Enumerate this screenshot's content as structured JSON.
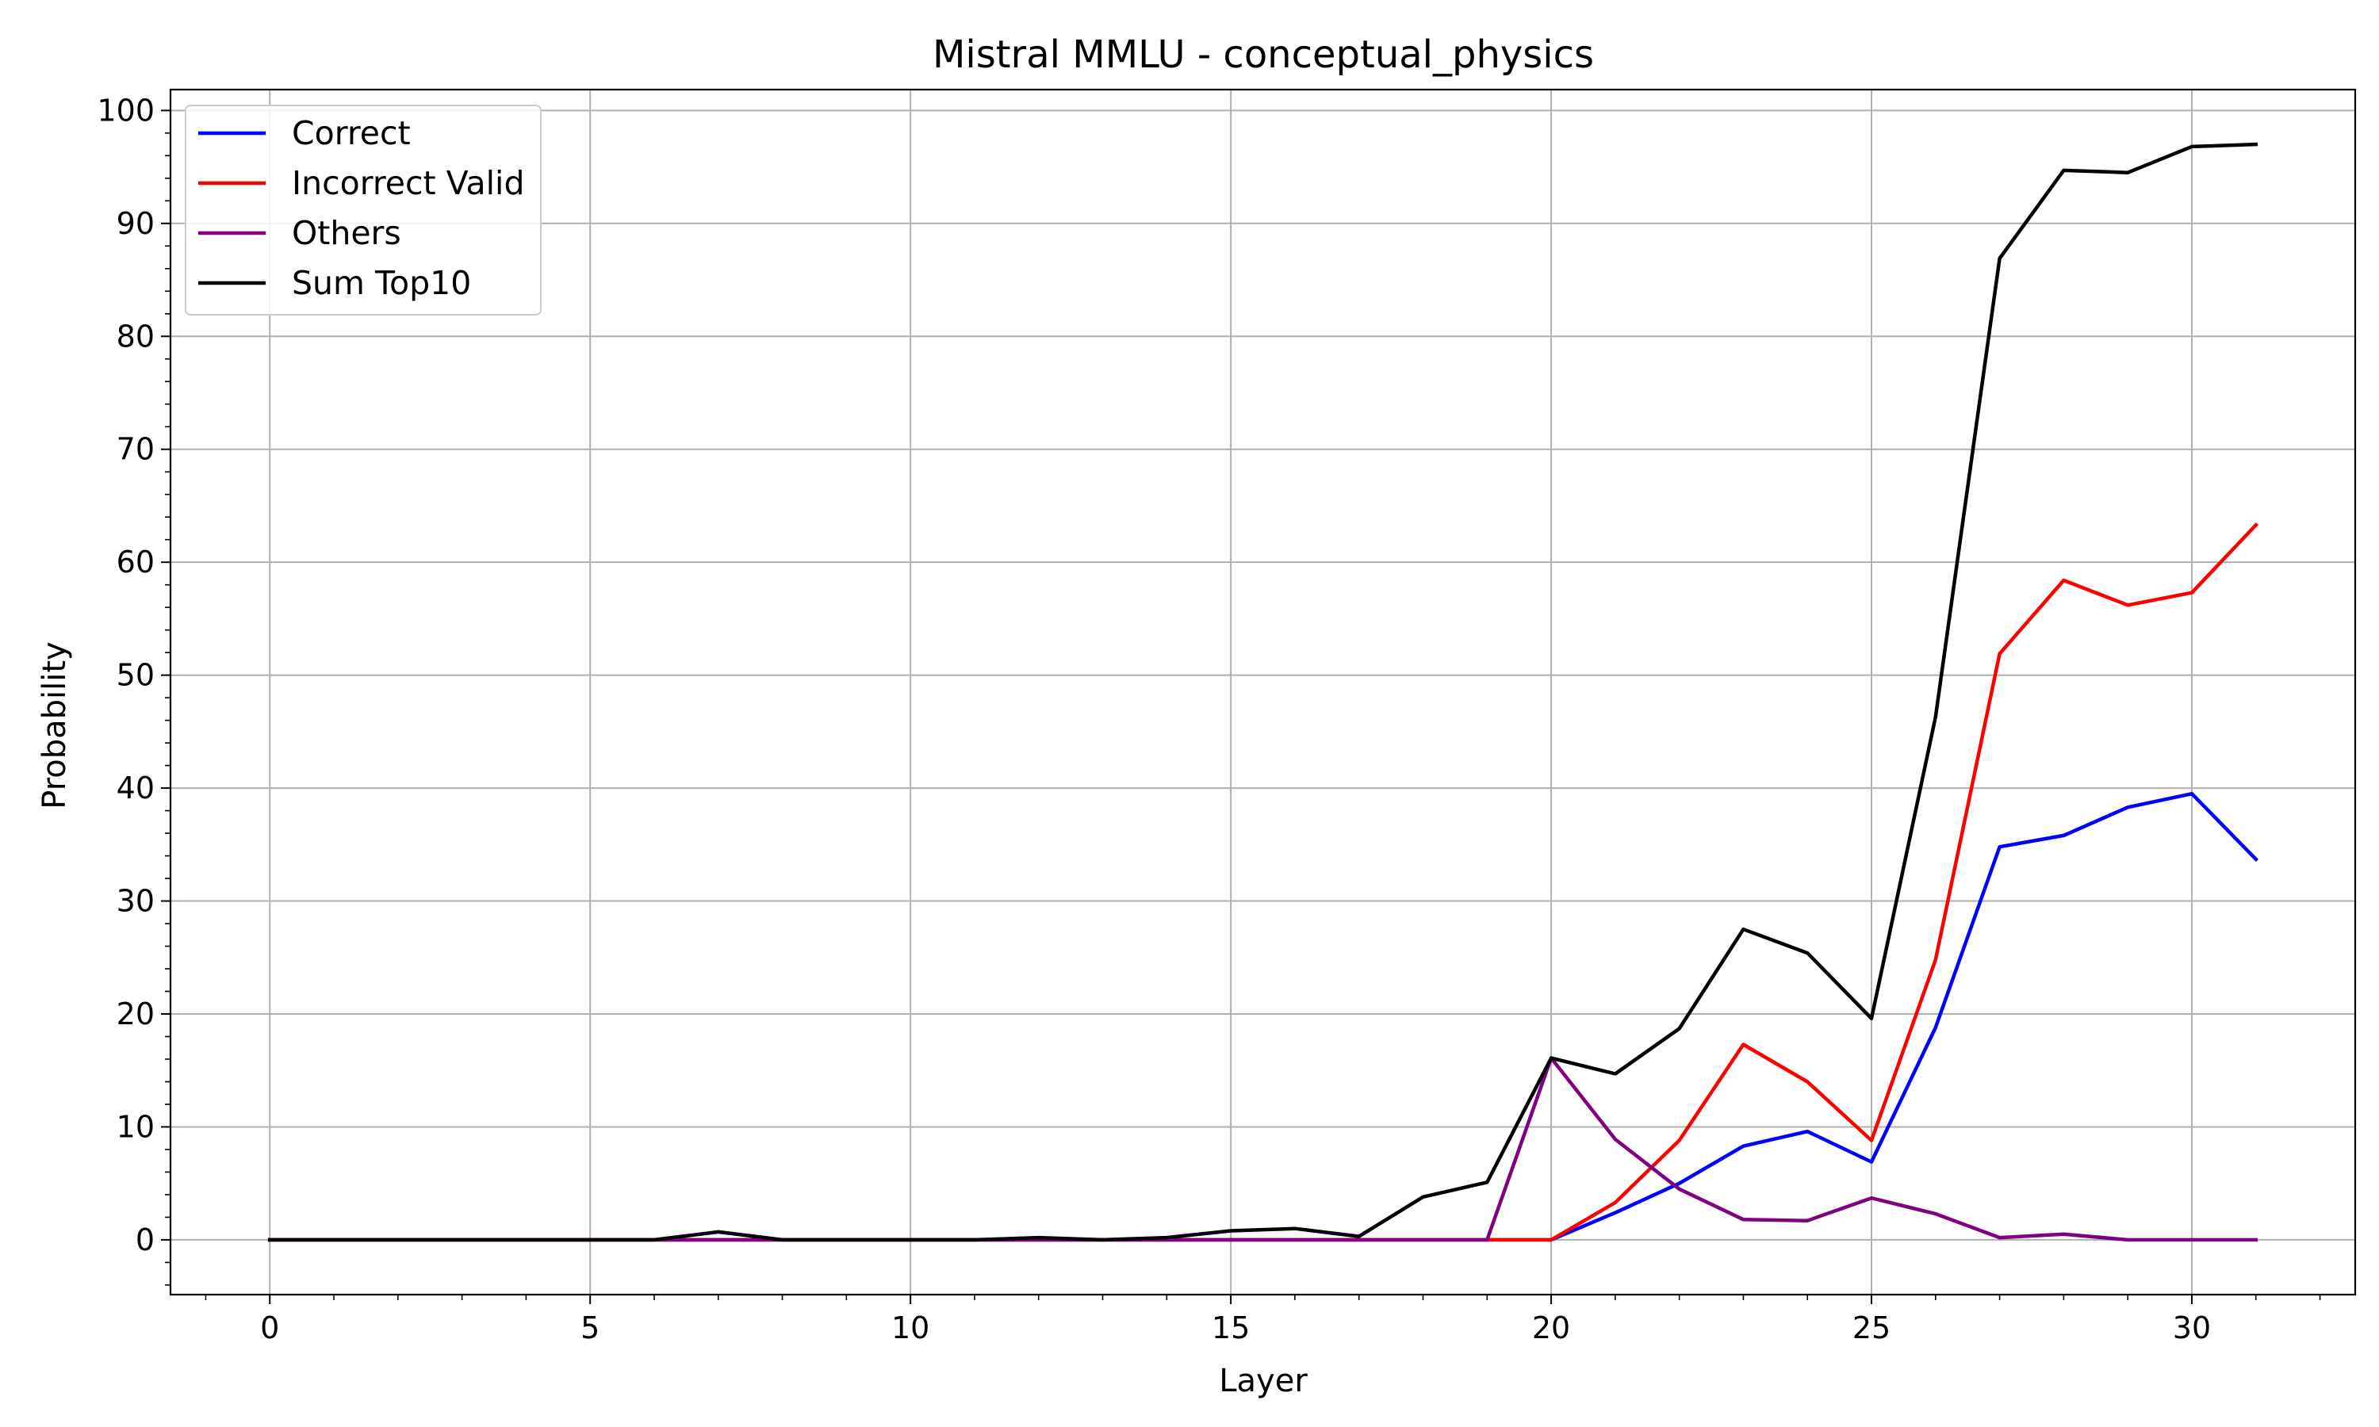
{
  "chart_data": {
    "type": "line",
    "title": "Mistral MMLU - conceptual_physics",
    "xlabel": "Layer",
    "ylabel": "Probability",
    "x": [
      0,
      1,
      2,
      3,
      4,
      5,
      6,
      7,
      8,
      9,
      10,
      11,
      12,
      13,
      14,
      15,
      16,
      17,
      18,
      19,
      20,
      21,
      22,
      23,
      24,
      25,
      26,
      27,
      28,
      29,
      30,
      31
    ],
    "xlim": [
      -1.55,
      32.55
    ],
    "ylim": [
      -4.85,
      101.85
    ],
    "xticks": [
      0,
      5,
      10,
      15,
      20,
      25,
      30
    ],
    "xtick_labels": [
      "0",
      "5",
      "10",
      "15",
      "20",
      "25",
      "30"
    ],
    "yticks": [
      0,
      10,
      20,
      30,
      40,
      50,
      60,
      70,
      80,
      90,
      100
    ],
    "ytick_labels": [
      "0",
      "10",
      "20",
      "30",
      "40",
      "50",
      "60",
      "70",
      "80",
      "90",
      "100"
    ],
    "grid": true,
    "legend_position": "upper-left",
    "series": [
      {
        "name": "Correct",
        "color": "#0000ff",
        "values": [
          0,
          0,
          0,
          0,
          0,
          0,
          0,
          0,
          0,
          0,
          0,
          0,
          0,
          0,
          0,
          0,
          0,
          0,
          0,
          0,
          0,
          2.4,
          5.0,
          8.3,
          9.6,
          6.9,
          18.8,
          34.8,
          35.8,
          38.3,
          39.5,
          33.7
        ]
      },
      {
        "name": "Incorrect Valid",
        "color": "#ff0000",
        "values": [
          0,
          0,
          0,
          0,
          0,
          0,
          0,
          0,
          0,
          0,
          0,
          0,
          0,
          0,
          0,
          0,
          0,
          0,
          0,
          0,
          0,
          3.3,
          8.8,
          17.3,
          14.0,
          8.8,
          24.8,
          51.9,
          58.4,
          56.2,
          57.3,
          63.3
        ]
      },
      {
        "name": "Others",
        "color": "#800080",
        "values": [
          0,
          0,
          0,
          0,
          0,
          0,
          0,
          0,
          0,
          0,
          0,
          0,
          0,
          0,
          0,
          0,
          0,
          0,
          0,
          0,
          16.1,
          8.9,
          4.5,
          1.8,
          1.7,
          3.7,
          2.3,
          0.2,
          0.5,
          0.0,
          0.0,
          0.0
        ]
      },
      {
        "name": "Sum Top10",
        "color": "#000000",
        "values": [
          0,
          0,
          0,
          0,
          0,
          0,
          0,
          0.7,
          0,
          0,
          0,
          0,
          0.2,
          0,
          0.2,
          0.8,
          1.0,
          0.3,
          3.8,
          5.1,
          16.1,
          14.7,
          18.7,
          27.5,
          25.4,
          19.6,
          46.3,
          86.9,
          94.7,
          94.5,
          96.8,
          97.0
        ]
      }
    ]
  }
}
